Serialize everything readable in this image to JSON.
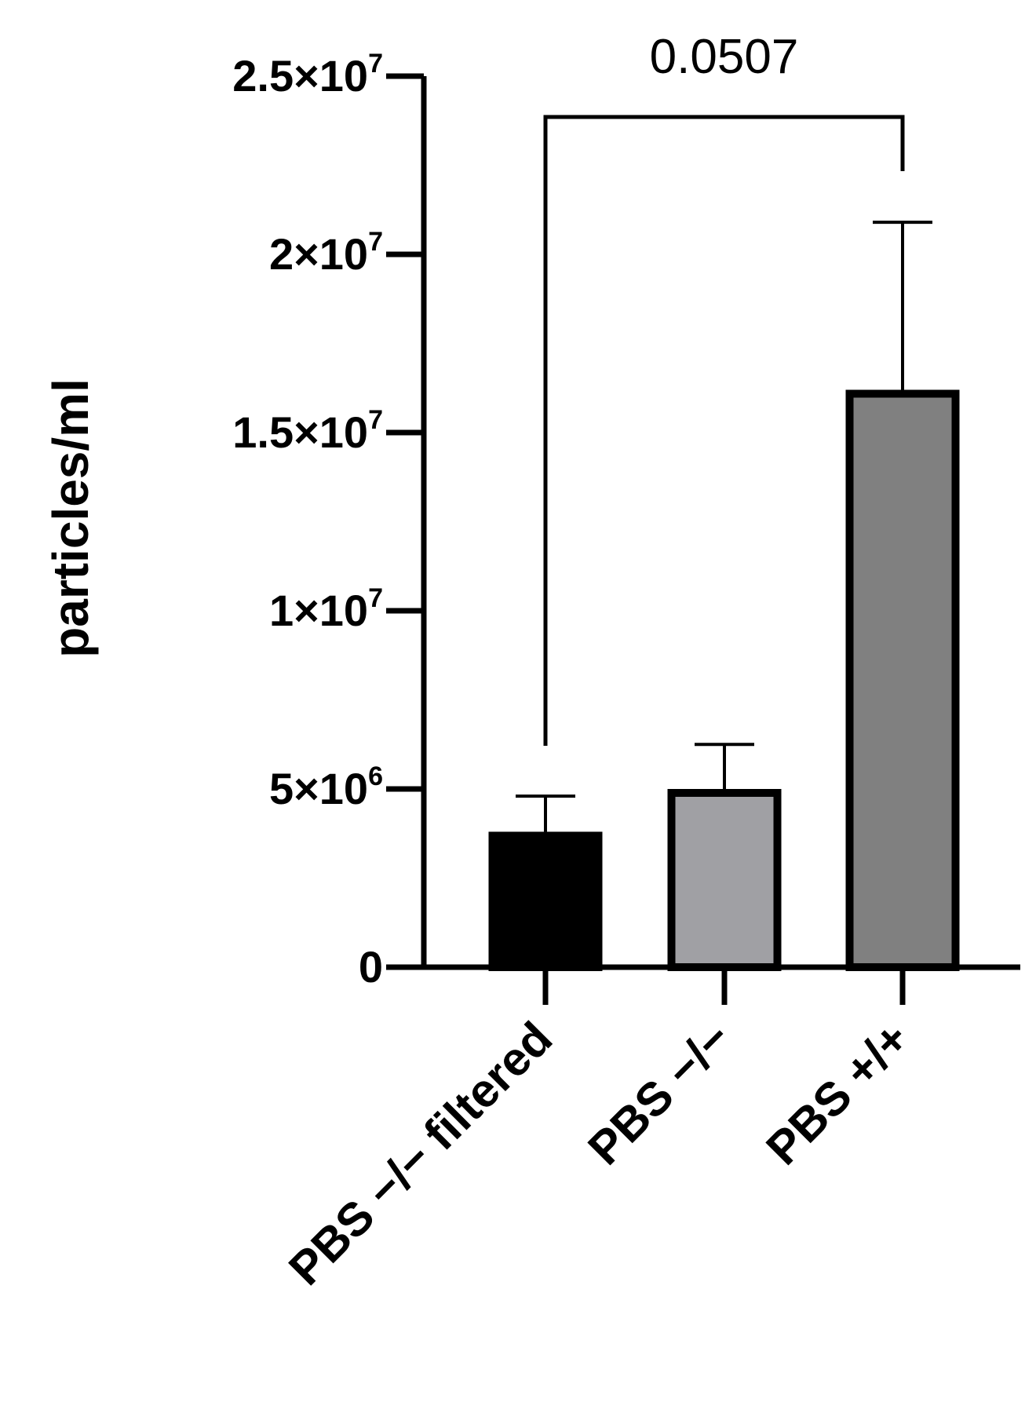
{
  "chart_data": {
    "type": "bar",
    "title": "",
    "xlabel": "",
    "ylabel": "particles/ml",
    "ylim": [
      0,
      25000000
    ],
    "grid": false,
    "legend": "none",
    "categories": [
      "PBS −/− filtered",
      "PBS −/−",
      "PBS +/+"
    ],
    "values": [
      3800000,
      5000000,
      16200000
    ],
    "error_upper": [
      4800000,
      6250000,
      20900000
    ],
    "bar_fill_colors": [
      "#000000",
      "#a0a0a4",
      "#808080"
    ],
    "bar_edge_color": "#000000",
    "y_ticks": [
      {
        "value": 0,
        "mantissa": "0",
        "exponent": ""
      },
      {
        "value": 5000000,
        "mantissa": "5×10",
        "exponent": "6"
      },
      {
        "value": 10000000,
        "mantissa": "1×10",
        "exponent": "7"
      },
      {
        "value": 15000000,
        "mantissa": "1.5×10",
        "exponent": "7"
      },
      {
        "value": 20000000,
        "mantissa": "2×10",
        "exponent": "7"
      },
      {
        "value": 25000000,
        "mantissa": "2.5×10",
        "exponent": "7"
      }
    ],
    "annotations": [
      {
        "type": "significance_bracket",
        "from_category": 0,
        "to_category": 2,
        "label": "0.0507"
      }
    ]
  }
}
